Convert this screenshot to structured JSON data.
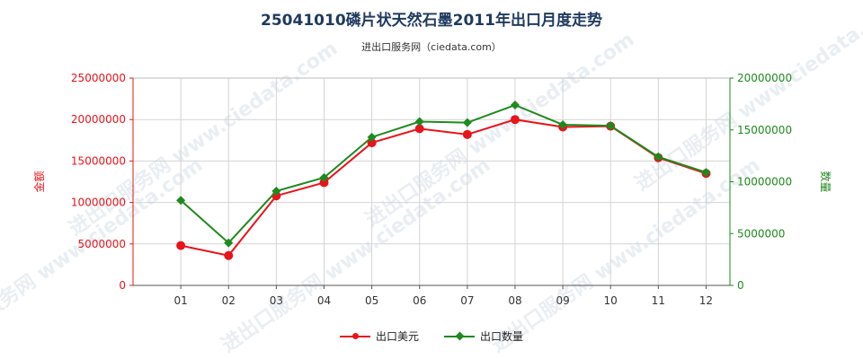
{
  "title": "25041010磷片状天然石墨2011年出口月度走势",
  "subtitle": "进出口服务网（ciedata.com）",
  "watermark": "进出口服务网 www.ciedata.com",
  "colors": {
    "usd": "#e8141b",
    "qty": "#1e8a1e",
    "grid": "#d4d4d4",
    "axis": "#555555"
  },
  "chart_data": {
    "type": "line",
    "categories": [
      "01",
      "02",
      "03",
      "04",
      "05",
      "06",
      "07",
      "08",
      "09",
      "10",
      "11",
      "12"
    ],
    "left_axis": {
      "label": "金额",
      "ylim": [
        0,
        25000000
      ],
      "ticks": [
        "0",
        "5000000",
        "10000000",
        "15000000",
        "20000000",
        "25000000"
      ]
    },
    "right_axis": {
      "label": "数量",
      "ylim": [
        0,
        20000000
      ],
      "ticks": [
        "0",
        "5000000",
        "10000000",
        "15000000",
        "20000000"
      ]
    },
    "series": [
      {
        "name": "出口美元",
        "axis": "left",
        "color": "#e8141b",
        "marker": "circle",
        "values": [
          4800000,
          3600000,
          10800000,
          12400000,
          17200000,
          18900000,
          18200000,
          20000000,
          19100000,
          19200000,
          15400000,
          13500000
        ]
      },
      {
        "name": "出口数量",
        "axis": "right",
        "color": "#1e8a1e",
        "marker": "diamond",
        "values": [
          8200000,
          4100000,
          9100000,
          10400000,
          14300000,
          15800000,
          15700000,
          17400000,
          15500000,
          15400000,
          12400000,
          10900000
        ]
      }
    ],
    "grid": true,
    "legend": "bottom-center"
  }
}
